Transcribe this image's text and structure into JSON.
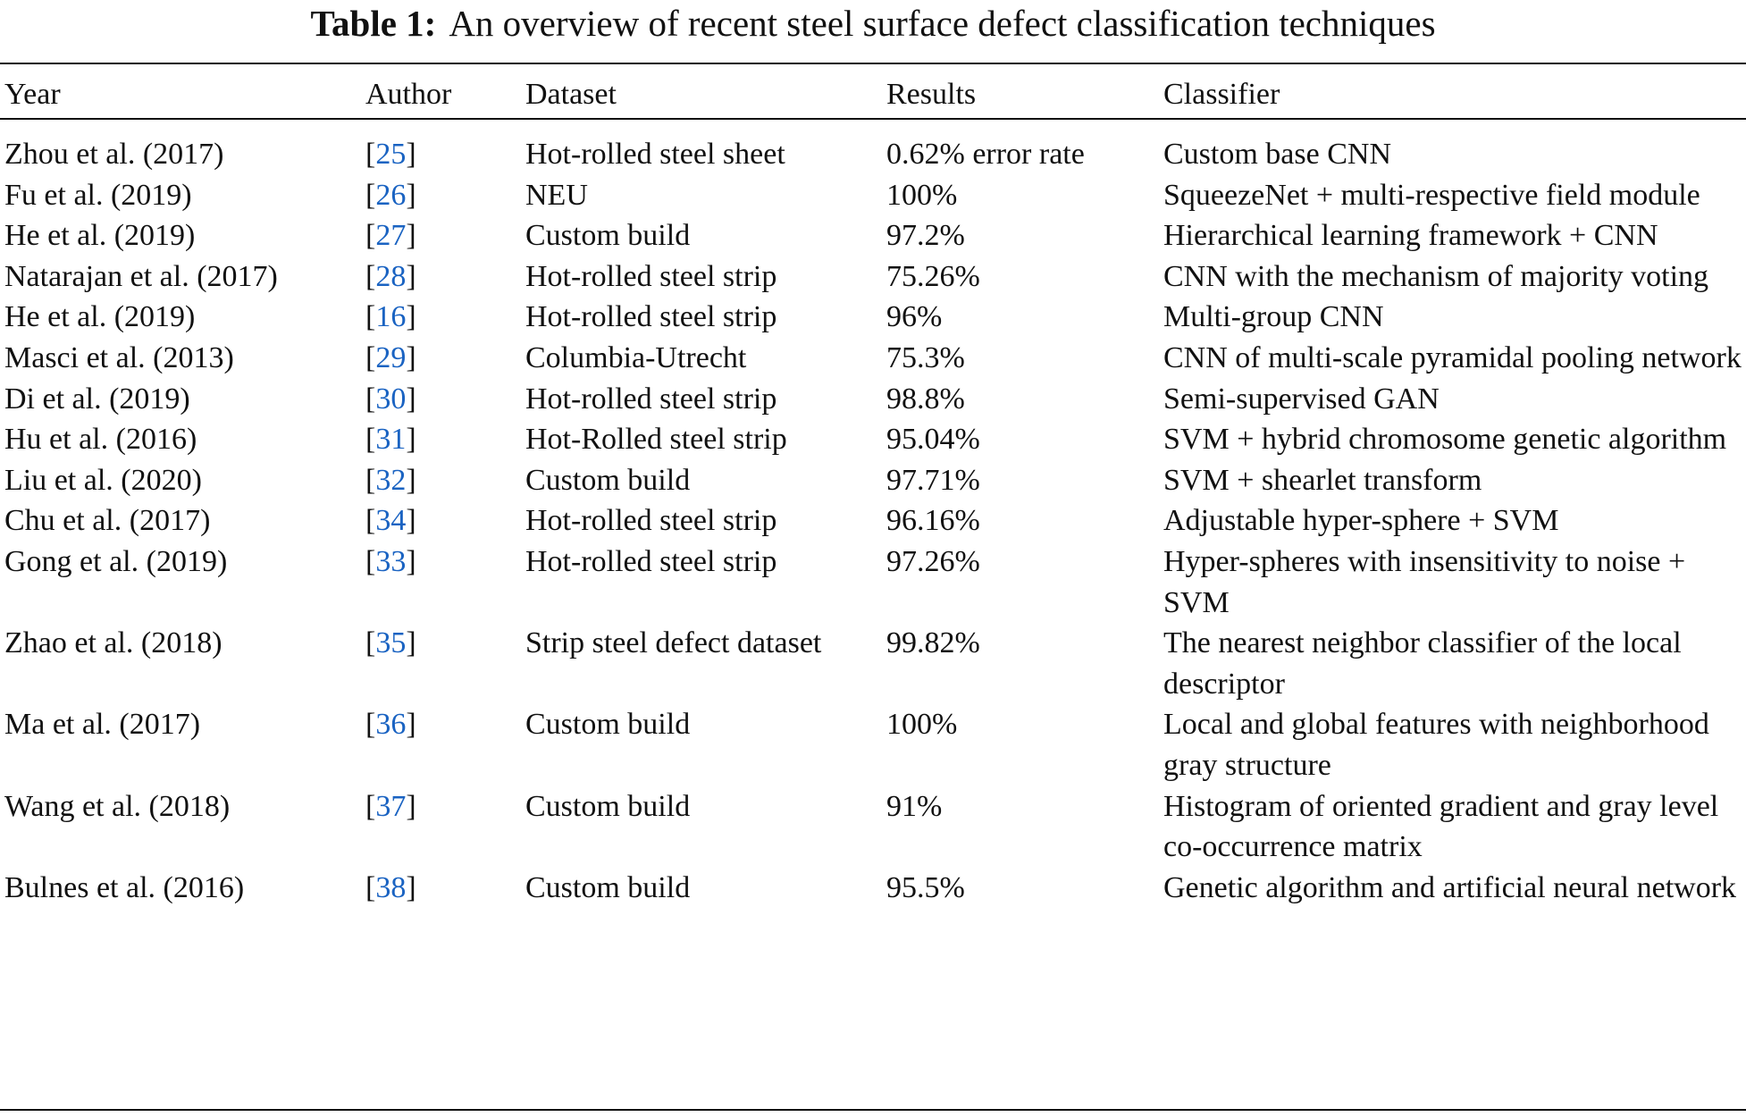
{
  "caption": {
    "label": "Table 1:",
    "text": "An overview of recent steel surface defect classification techniques"
  },
  "columns": [
    "Year",
    "Author",
    "Dataset",
    "Results",
    "Classifier"
  ],
  "rows": [
    {
      "year": "Zhou et al. (2017)",
      "ref": "25",
      "dataset": "Hot-rolled steel sheet",
      "result": "0.62% error rate",
      "classifier": "Custom base CNN"
    },
    {
      "year": "Fu et al. (2019)",
      "ref": "26",
      "dataset": "NEU",
      "result": "100%",
      "classifier": "SqueezeNet + multi-respective field module"
    },
    {
      "year": "He et al. (2019)",
      "ref": "27",
      "dataset": "Custom build",
      "result": "97.2%",
      "classifier": "Hierarchical learning framework + CNN"
    },
    {
      "year": "Natarajan et al. (2017)",
      "ref": "28",
      "dataset": "Hot-rolled steel strip",
      "result": "75.26%",
      "classifier": "CNN with the mechanism of majority voting"
    },
    {
      "year": "He et al. (2019)",
      "ref": "16",
      "dataset": "Hot-rolled steel strip",
      "result": "96%",
      "classifier": "Multi-group CNN"
    },
    {
      "year": "Masci et al. (2013)",
      "ref": "29",
      "dataset": "Columbia-Utrecht",
      "result": "75.3%",
      "classifier": "CNN of multi-scale pyramidal pooling network"
    },
    {
      "year": "Di et al. (2019)",
      "ref": "30",
      "dataset": "Hot-rolled steel strip",
      "result": "98.8%",
      "classifier": "Semi-supervised GAN"
    },
    {
      "year": "Hu et al. (2016)",
      "ref": "31",
      "dataset": "Hot-Rolled steel strip",
      "result": "95.04%",
      "classifier": "SVM + hybrid chromosome genetic algorithm"
    },
    {
      "year": "Liu et al. (2020)",
      "ref": "32",
      "dataset": "Custom build",
      "result": "97.71%",
      "classifier": "SVM + shearlet transform"
    },
    {
      "year": "Chu et al. (2017)",
      "ref": "34",
      "dataset": "Hot-rolled steel strip",
      "result": "96.16%",
      "classifier": "Adjustable hyper-sphere + SVM"
    },
    {
      "year": "Gong et al. (2019)",
      "ref": "33",
      "dataset": "Hot-rolled steel strip",
      "result": "97.26%",
      "classifier": "Hyper-spheres with insensitivity to noise + SVM"
    },
    {
      "year": "Zhao et al. (2018)",
      "ref": "35",
      "dataset": "Strip steel defect dataset",
      "result": "99.82%",
      "classifier": "The nearest neighbor classifier of the local descriptor"
    },
    {
      "year": "Ma et al. (2017)",
      "ref": "36",
      "dataset": "Custom build",
      "result": "100%",
      "classifier": "Local and global features with neighborhood gray structure"
    },
    {
      "year": "Wang et al. (2018)",
      "ref": "37",
      "dataset": "Custom build",
      "result": "91%",
      "classifier": "Histogram of oriented gradient and gray level co-occurrence matrix"
    },
    {
      "year": "Bulnes et al. (2016)",
      "ref": "38",
      "dataset": "Custom build",
      "result": "95.5%",
      "classifier": "Genetic algorithm and artificial neural network"
    }
  ],
  "colors": {
    "link": "#1a63c2",
    "text": "#111111"
  }
}
